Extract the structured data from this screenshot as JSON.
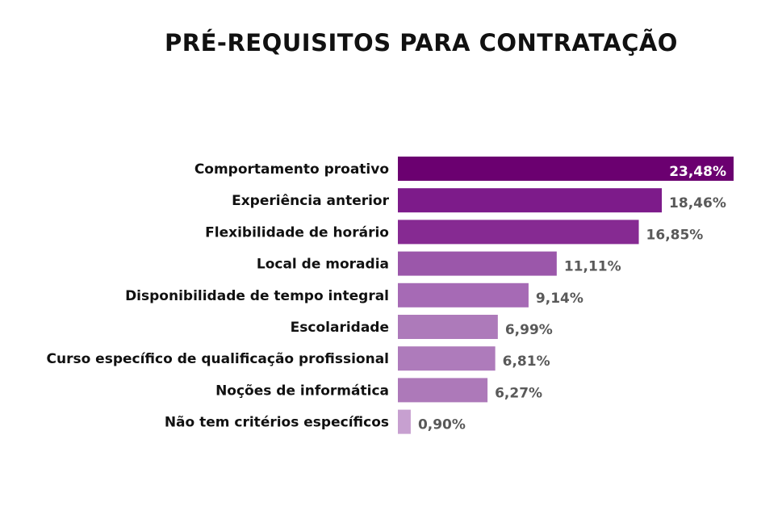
{
  "chart_data": {
    "type": "bar",
    "orientation": "horizontal",
    "title": "PRÉ-REQUISITOS PARA CONTRATAÇÃO",
    "categories": [
      "Comportamento proativo",
      "Experiência anterior",
      "Flexibilidade de horário",
      "Local de moradia",
      "Disponibilidade de tempo integral",
      "Escolaridade",
      "Curso específico de qualificação profissional",
      "Noções de informática",
      "Não tem critérios específicos"
    ],
    "values": [
      23.48,
      18.46,
      16.85,
      11.11,
      9.14,
      6.99,
      6.81,
      6.27,
      0.9
    ],
    "value_labels": [
      "23,48%",
      "18,46%",
      "16,85%",
      "11,11%",
      "9,14%",
      "6,99%",
      "6,81%",
      "6,27%",
      "0,90%"
    ],
    "colors": [
      "#6b0070",
      "#7d1b8a",
      "#862a92",
      "#9b57aa",
      "#a66ab5",
      "#ad7aba",
      "#ae7bbb",
      "#ad79b9",
      "#c7a0d0"
    ],
    "xlabel": "",
    "ylabel": "",
    "xlim": [
      0,
      23.48
    ],
    "grid": false,
    "legend": "none"
  }
}
